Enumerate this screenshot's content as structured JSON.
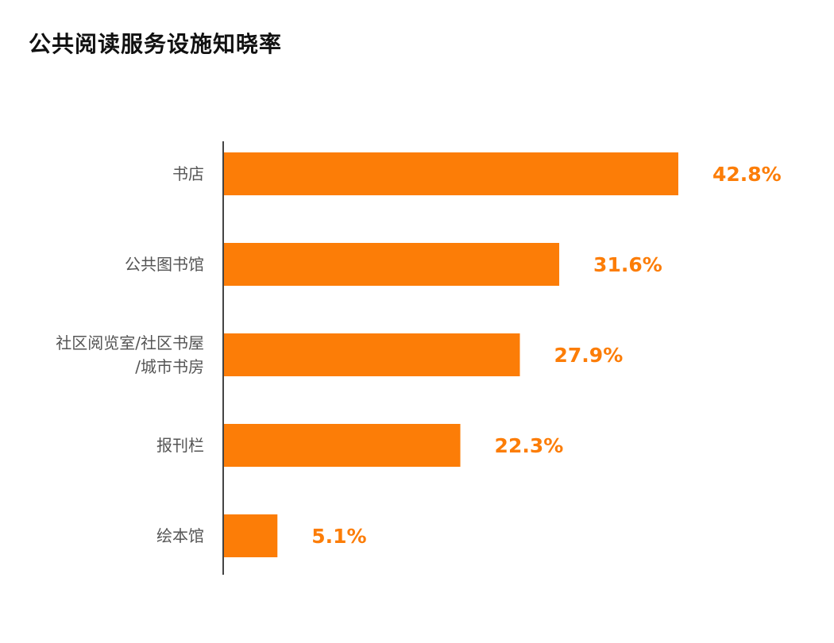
{
  "chart_data": {
    "type": "bar",
    "orientation": "horizontal",
    "title": "公共阅读服务设施知晓率",
    "categories": [
      [
        "书店"
      ],
      [
        "公共图书馆"
      ],
      [
        "社区阅览室/社区书屋",
        "/城市书房"
      ],
      [
        "报刊栏"
      ],
      [
        "绘本馆"
      ]
    ],
    "values": [
      42.8,
      31.6,
      27.9,
      22.3,
      5.1
    ],
    "value_labels": [
      "42.8%",
      "31.6%",
      "27.9%",
      "22.3%",
      "5.1%"
    ],
    "unit": "%",
    "xlim": [
      0,
      45
    ],
    "grid": false,
    "legend": "none",
    "bar_color": "#fc7d07",
    "label_color": "#fc7d07",
    "axis_color": "#444444"
  }
}
